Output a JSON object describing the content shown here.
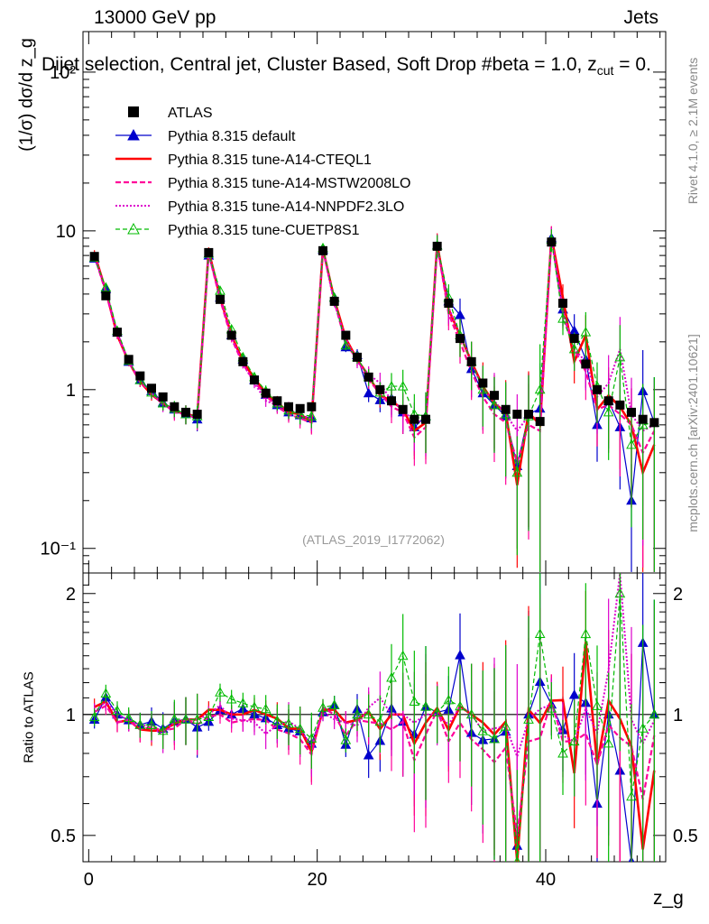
{
  "header": {
    "energy_label": "13000 GeV pp",
    "category": "Jets",
    "selection": "Dijet selection, Central jet, Cluster Based, Soft Drop #beta = 1.0, z",
    "selection_sub": "cut",
    "selection_tail": " = 0.",
    "side_right_top": "Rivet 4.1.0, ≥ 2.1M events",
    "side_right_bottom": "mcplots.cern.ch [arXiv:2401.10621]",
    "analysis_id": "(ATLAS_2019_I1772062)"
  },
  "colors": {
    "atlas": "#000000",
    "default": "#0000cc",
    "cteql1": "#ff0000",
    "mstw": "#ff0099",
    "nnpdf": "#dd00cc",
    "cuetp": "#00bb00"
  },
  "chart_data": {
    "type": "line",
    "title": "Dijet selection, Central jet, Cluster Based, Soft Drop #beta = 1.0, z_cut = 0.",
    "xlabel": "z_g",
    "ylabel": "(1/σ) dσ/d z_g",
    "ratio_ylabel": "Ratio to ATLAS",
    "xlim": [
      -0.5,
      50.5
    ],
    "ylim": [
      0.07,
      180
    ],
    "yscale": "log",
    "ratio_ylim": [
      0.43,
      2.25
    ],
    "x_ticks": [
      "0",
      "20",
      "40"
    ],
    "y_ticks": [
      "10⁻¹",
      "1",
      "10",
      "10²"
    ],
    "ratio_ticks": [
      "0.5",
      "1",
      "2"
    ],
    "x": [
      0.5,
      1.5,
      2.5,
      3.5,
      4.5,
      5.5,
      6.5,
      7.5,
      8.5,
      9.5,
      10.5,
      11.5,
      12.5,
      13.5,
      14.5,
      15.5,
      16.5,
      17.5,
      18.5,
      19.5,
      20.5,
      21.5,
      22.5,
      23.5,
      24.5,
      25.5,
      26.5,
      27.5,
      28.5,
      29.5,
      30.5,
      31.5,
      32.5,
      33.5,
      34.5,
      35.5,
      36.5,
      37.5,
      38.5,
      39.5,
      40.5,
      41.5,
      42.5,
      43.5,
      44.5,
      45.5,
      46.5,
      47.5,
      48.5,
      49.5
    ],
    "legend": [
      {
        "key": "atlas",
        "label": "ATLAS"
      },
      {
        "key": "default",
        "label": "Pythia 8.315 default"
      },
      {
        "key": "cteql1",
        "label": "Pythia 8.315 tune-A14-CTEQL1"
      },
      {
        "key": "mstw",
        "label": "Pythia 8.315 tune-A14-MSTW2008LO"
      },
      {
        "key": "nnpdf",
        "label": "Pythia 8.315 tune-A14-NNPDF2.3LO"
      },
      {
        "key": "cuetp",
        "label": "Pythia 8.315 tune-CUETP8S1"
      }
    ],
    "series": [
      {
        "key": "atlas",
        "name": "ATLAS",
        "values": [
          6.9,
          3.9,
          2.3,
          1.55,
          1.22,
          1.02,
          0.9,
          0.78,
          0.72,
          0.7,
          7.3,
          3.7,
          2.2,
          1.5,
          1.15,
          0.95,
          0.85,
          0.78,
          0.76,
          0.78,
          7.5,
          3.6,
          2.2,
          1.6,
          1.2,
          1.0,
          0.85,
          0.75,
          0.65,
          0.65,
          8.0,
          3.5,
          2.1,
          1.5,
          1.1,
          0.92,
          0.75,
          0.7,
          0.7,
          0.63,
          8.5,
          3.5,
          2.1,
          1.45,
          1.0,
          0.85,
          0.8,
          0.72,
          0.65,
          0.62
        ]
      },
      {
        "key": "default",
        "name": "Pythia 8.315 default",
        "values": [
          6.7,
          4.3,
          2.3,
          1.5,
          1.15,
          0.98,
          0.83,
          0.75,
          0.7,
          0.65,
          7.0,
          3.8,
          2.2,
          1.55,
          1.15,
          0.93,
          0.8,
          0.72,
          0.69,
          0.66,
          7.6,
          3.8,
          1.85,
          1.65,
          0.95,
          0.86,
          0.88,
          0.72,
          0.58,
          0.68,
          8.1,
          3.6,
          2.95,
          1.35,
          0.95,
          0.8,
          0.68,
          0.33,
          0.7,
          0.76,
          9.0,
          3.2,
          2.35,
          1.55,
          0.6,
          0.85,
          0.58,
          0.2,
          0.98,
          0.62
        ]
      },
      {
        "key": "cteql1",
        "name": "Pythia 8.315 tune-A14-CTEQL1",
        "values": [
          7.2,
          4.2,
          2.2,
          1.5,
          1.12,
          0.93,
          0.82,
          0.74,
          0.7,
          0.68,
          7.5,
          3.8,
          2.2,
          1.5,
          1.18,
          0.95,
          0.83,
          0.72,
          0.7,
          0.63,
          7.7,
          3.7,
          2.1,
          1.55,
          1.22,
          0.92,
          0.85,
          0.75,
          0.55,
          0.62,
          8.3,
          3.2,
          2.2,
          1.5,
          1.05,
          0.82,
          0.72,
          0.25,
          0.72,
          0.6,
          9.2,
          3.8,
          1.5,
          2.2,
          0.75,
          0.92,
          0.78,
          0.6,
          0.3,
          0.45
        ]
      },
      {
        "key": "mstw",
        "name": "Pythia 8.315 tune-A14-MSTW2008LO",
        "values": [
          7.0,
          4.1,
          2.2,
          1.5,
          1.12,
          0.95,
          0.82,
          0.72,
          0.7,
          0.66,
          7.2,
          3.7,
          2.1,
          1.45,
          1.12,
          0.92,
          0.78,
          0.7,
          0.66,
          0.62,
          7.8,
          3.6,
          1.95,
          1.55,
          1.15,
          0.95,
          0.78,
          0.72,
          0.5,
          0.58,
          8.2,
          3.0,
          2.0,
          1.3,
          0.9,
          0.7,
          0.62,
          0.35,
          0.6,
          0.55,
          9.2,
          3.0,
          1.8,
          1.3,
          0.75,
          0.8,
          0.7,
          0.6,
          0.4,
          0.55
        ]
      },
      {
        "key": "nnpdf",
        "name": "Pythia 8.315 tune-A14-NNPDF2.3LO",
        "values": [
          7.0,
          4.2,
          2.3,
          1.5,
          1.15,
          0.95,
          0.8,
          0.75,
          0.7,
          0.68,
          7.3,
          3.9,
          2.15,
          1.45,
          1.1,
          0.85,
          0.8,
          0.75,
          0.7,
          0.65,
          7.6,
          3.5,
          2.1,
          1.5,
          1.25,
          1.1,
          0.85,
          0.75,
          0.62,
          0.65,
          8.0,
          3.3,
          2.2,
          1.5,
          1.0,
          0.85,
          0.7,
          0.55,
          0.68,
          0.65,
          9.0,
          3.1,
          1.8,
          1.5,
          0.9,
          1.1,
          1.8,
          0.7,
          0.55,
          0.6
        ]
      },
      {
        "key": "cuetp",
        "name": "Pythia 8.315 tune-CUETP8S1",
        "values": [
          6.8,
          4.4,
          2.35,
          1.52,
          1.15,
          0.96,
          0.82,
          0.76,
          0.7,
          0.68,
          7.2,
          4.2,
          2.4,
          1.6,
          1.2,
          0.98,
          0.82,
          0.74,
          0.7,
          0.68,
          7.8,
          3.8,
          1.9,
          1.6,
          1.2,
          0.96,
          1.05,
          1.05,
          0.7,
          0.68,
          8.1,
          3.8,
          2.2,
          1.5,
          1.0,
          0.8,
          0.7,
          0.3,
          0.68,
          1.0,
          8.8,
          2.8,
          1.8,
          2.3,
          1.05,
          0.72,
          1.6,
          0.45,
          0.6,
          0.62
        ]
      }
    ]
  }
}
